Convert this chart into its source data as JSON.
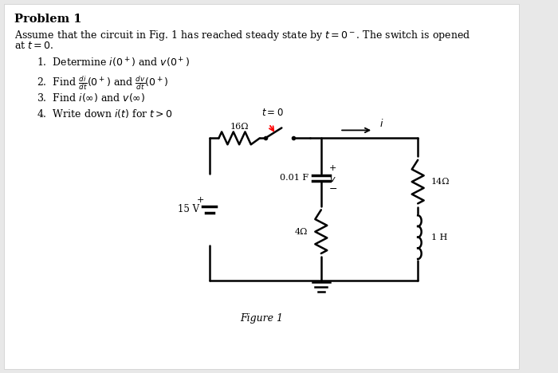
{
  "title": "Problem 1",
  "intro_line1": "Assume that the circuit in Fig. 1 has reached steady state by $t = 0^-$. The switch is opened",
  "intro_line2": "at $t = 0$.",
  "item1": "1.  Determine $i(0^+)$ and $v(0^+)$",
  "item2": "2.  Find $\\frac{di}{dt}(0^+)$ and $\\frac{dv}{dt}(0^+)$",
  "item3": "3.  Find $i(\\infty)$ and $v(\\infty)$",
  "item4": "4.  Write down $i(t)$ for $t > 0$",
  "figure_label": "Figure 1",
  "bg_color": "#e8e8e8",
  "panel_color": "#ffffff",
  "resistor_16": "16Ω",
  "switch_label": "$t = 0$",
  "current_label": "$i$",
  "cap_label": "0.01 F",
  "v_label": "$v$",
  "resistor_14": "14Ω",
  "resistor_4": "4Ω",
  "inductor_label": "1 H",
  "voltage_label": "15 V"
}
